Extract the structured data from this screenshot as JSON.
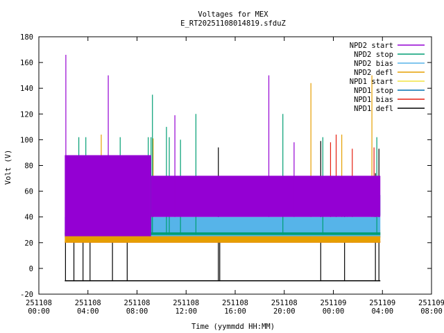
{
  "chart_data": {
    "type": "line",
    "title": "Voltages for MEX",
    "subtitle": "E_RT20251108014819.sfduZ",
    "xlabel": "Time (yymmdd HH:MM)",
    "ylabel": "Volt (V)",
    "ylim": [
      -20,
      180
    ],
    "yticks": [
      "-20",
      "0",
      "20",
      "40",
      "60",
      "80",
      "100",
      "120",
      "140",
      "160",
      "180"
    ],
    "xlim_hours": [
      0,
      56
    ],
    "xticks": [
      {
        "date": "251108",
        "time": "00:00"
      },
      {
        "date": "251108",
        "time": "04:00"
      },
      {
        "date": "251108",
        "time": "08:00"
      },
      {
        "date": "251108",
        "time": "12:00"
      },
      {
        "date": "251108",
        "time": "16:00"
      },
      {
        "date": "251108",
        "time": "20:00"
      },
      {
        "date": "251109",
        "time": "00:00"
      },
      {
        "date": "251109",
        "time": "04:00"
      },
      {
        "date": "251109",
        "time": "08:00"
      }
    ],
    "legend_position": "top-right",
    "grid": false,
    "series": [
      {
        "name": "NPD2 start",
        "color": "#9400d3",
        "segments": [
          {
            "x_from": 3.7,
            "x_to": 16.0,
            "y_low": 25,
            "y_high": 88
          },
          {
            "x_from": 16.0,
            "x_to": 48.7,
            "y_low": 40,
            "y_high": 72
          }
        ],
        "spikes": [
          {
            "x": 3.85,
            "y": 166
          },
          {
            "x": 9.9,
            "y": 150
          },
          {
            "x": 19.4,
            "y": 119
          },
          {
            "x": 32.8,
            "y": 150
          },
          {
            "x": 36.4,
            "y": 98
          }
        ]
      },
      {
        "name": "NPD2 stop",
        "color": "#009e73",
        "segments": [
          {
            "x_from": 3.7,
            "x_to": 48.7,
            "y_low": 26,
            "y_high": 28
          }
        ],
        "spikes": [
          {
            "x": 5.7,
            "y": 102
          },
          {
            "x": 6.7,
            "y": 102
          },
          {
            "x": 11.6,
            "y": 102
          },
          {
            "x": 15.6,
            "y": 102
          },
          {
            "x": 16.0,
            "y": 102
          },
          {
            "x": 16.2,
            "y": 135
          },
          {
            "x": 18.2,
            "y": 110
          },
          {
            "x": 18.6,
            "y": 102
          },
          {
            "x": 20.2,
            "y": 100
          },
          {
            "x": 22.4,
            "y": 120
          },
          {
            "x": 34.8,
            "y": 120
          },
          {
            "x": 40.5,
            "y": 102
          },
          {
            "x": 48.2,
            "y": 102
          }
        ]
      },
      {
        "name": "NPD2 bias",
        "color": "#56b4e9",
        "segments": [
          {
            "x_from": 3.7,
            "x_to": 48.7,
            "y_low": 25,
            "y_high": 40
          }
        ]
      },
      {
        "name": "NPD2 defl",
        "color": "#e69f00",
        "segments": [
          {
            "x_from": 3.7,
            "x_to": 48.7,
            "y_low": 20,
            "y_high": 28
          }
        ],
        "spikes": [
          {
            "x": 8.9,
            "y": 104
          },
          {
            "x": 16.3,
            "y": 101
          },
          {
            "x": 38.8,
            "y": 144
          },
          {
            "x": 43.2,
            "y": 104
          },
          {
            "x": 47.5,
            "y": 150
          }
        ]
      },
      {
        "name": "NPD1 start",
        "color": "#f0e442",
        "segments": [
          {
            "x_from": 3.7,
            "x_to": 48.7,
            "y_low": 28,
            "y_high": 30
          }
        ],
        "spikes": [
          {
            "x": 11.0,
            "y": 42
          },
          {
            "x": 44.0,
            "y": 44
          }
        ]
      },
      {
        "name": "NPD1 stop",
        "color": "#0072b2",
        "segments": [
          {
            "x_from": 3.7,
            "x_to": 48.7,
            "y_low": 24,
            "y_high": 25
          },
          {
            "x_from": 14.1,
            "x_to": 48.7,
            "y_low": 41,
            "y_high": 57
          }
        ]
      },
      {
        "name": "NPD1 bias",
        "color": "#e51e10",
        "segments": [
          {
            "x_from": 3.7,
            "x_to": 48.7,
            "y_low": 20,
            "y_high": 21
          }
        ],
        "spikes": [
          {
            "x": 41.6,
            "y": 98
          },
          {
            "x": 42.4,
            "y": 104
          },
          {
            "x": 44.7,
            "y": 93
          },
          {
            "x": 47.8,
            "y": 94
          }
        ]
      },
      {
        "name": "NPD1 defl",
        "color": "#000000",
        "segments": [
          {
            "x_from": 3.7,
            "x_to": 48.7,
            "y_low": -10,
            "y_high": -10
          }
        ],
        "spikes": [
          {
            "x": 3.8,
            "y": 71
          },
          {
            "x": 5.0,
            "y": 73
          },
          {
            "x": 6.3,
            "y": 73
          },
          {
            "x": 7.3,
            "y": 73
          },
          {
            "x": 10.5,
            "y": 73
          },
          {
            "x": 12.6,
            "y": 73
          },
          {
            "x": 25.6,
            "y": 94
          },
          {
            "x": 25.8,
            "y": 32
          },
          {
            "x": 40.2,
            "y": 99
          },
          {
            "x": 43.6,
            "y": 70
          },
          {
            "x": 48.0,
            "y": 74
          },
          {
            "x": 48.5,
            "y": 93
          }
        ]
      }
    ]
  }
}
